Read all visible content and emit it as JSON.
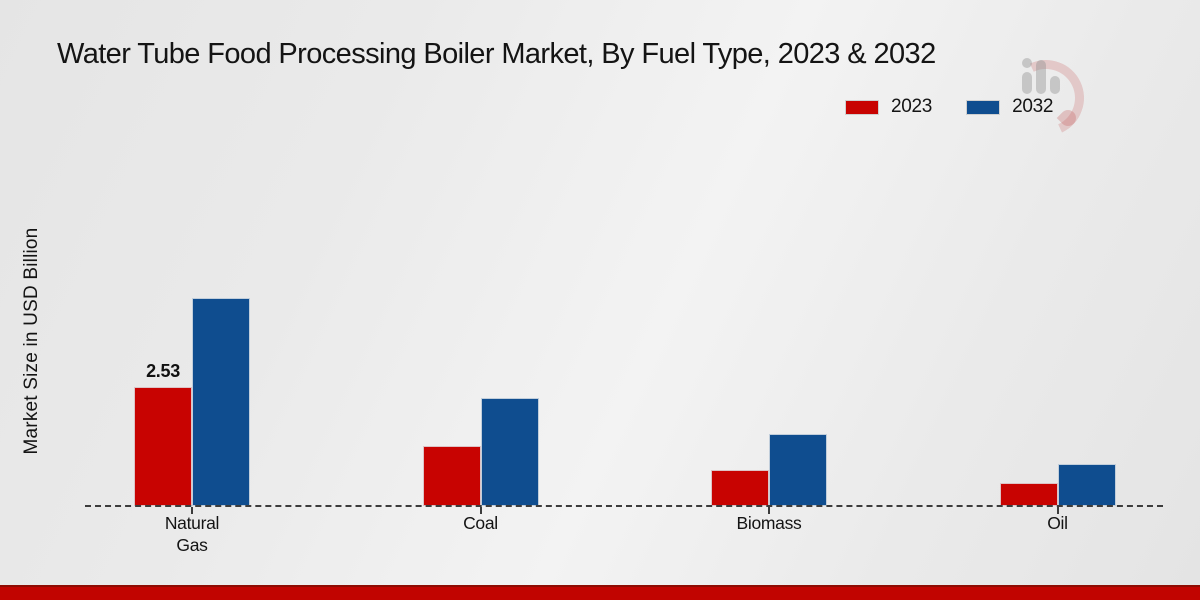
{
  "header": {
    "title": "Water Tube Food Processing Boiler Market, By Fuel Type, 2023 & 2032"
  },
  "legend": {
    "items": [
      {
        "label": "2023",
        "color": "#c80301"
      },
      {
        "label": "2032",
        "color": "#0f4d8f"
      }
    ]
  },
  "watermark": {
    "icon": "mrfr-bar-chart-swoosh-logo"
  },
  "footer": {
    "accent_color": "#c10400",
    "accent_edge_color": "#8e0c03"
  },
  "chart_data": {
    "type": "bar",
    "title": "Water Tube Food Processing Boiler Market, By Fuel Type, 2023 & 2032",
    "xlabel": "",
    "ylabel": "Market Size in USD Billion",
    "categories": [
      "Natural Gas",
      "Coal",
      "Biomass",
      "Oil"
    ],
    "series": [
      {
        "name": "2023",
        "color": "#c80301",
        "values": [
          2.53,
          1.27,
          0.77,
          0.48
        ]
      },
      {
        "name": "2032",
        "color": "#0f4d8f",
        "values": [
          4.42,
          2.29,
          1.53,
          0.89
        ]
      }
    ],
    "value_labels_shown": [
      {
        "category": "Natural Gas",
        "series": "2023",
        "text": "2.53"
      }
    ],
    "ylim": [
      0,
      5
    ],
    "grid": false,
    "legend_position": "top-right",
    "baseline_style": "dashed",
    "y_axis_ticks_shown": false
  }
}
